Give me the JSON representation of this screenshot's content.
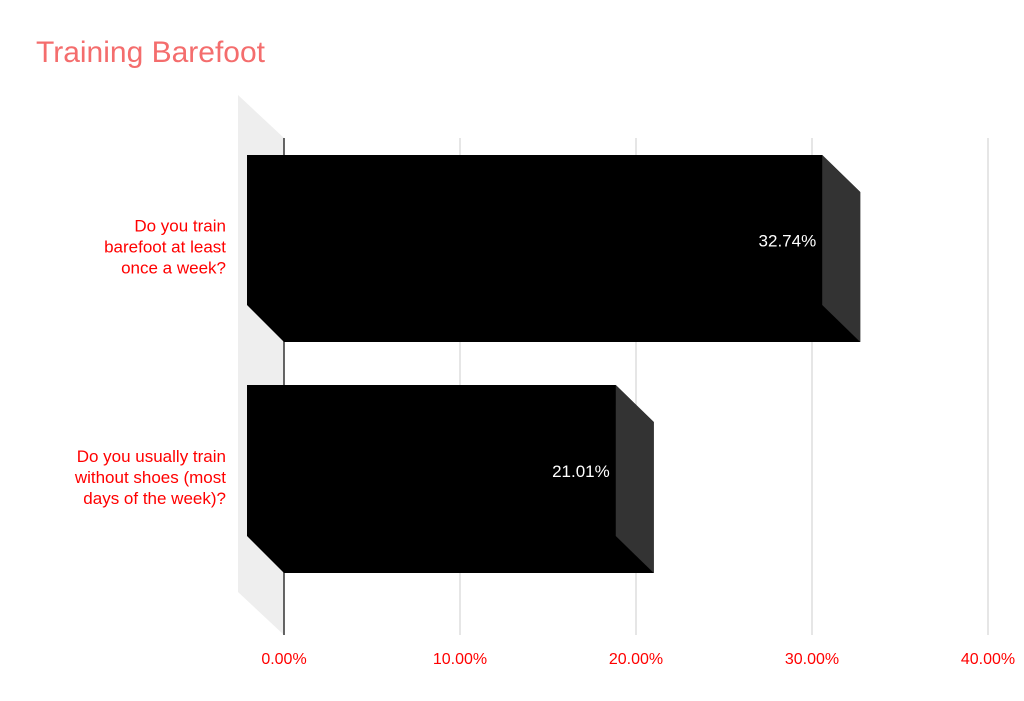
{
  "chart_data": {
    "type": "bar",
    "orientation": "horizontal",
    "style": "3d",
    "title": "Training Barefoot",
    "categories": [
      "Do you train barefoot at least once a week?",
      "Do you usually train without shoes (most days of the week)?"
    ],
    "category_lines": [
      [
        "Do you train",
        "barefoot at least",
        "once a week?"
      ],
      [
        "Do you usually train",
        "without shoes (most",
        "days of the week)?"
      ]
    ],
    "values": [
      32.74,
      21.01
    ],
    "data_labels": [
      "32.74%",
      "21.01%"
    ],
    "xlim": [
      0,
      40
    ],
    "xticks": [
      "0.00%",
      "10.00%",
      "20.00%",
      "30.00%",
      "40.00%"
    ],
    "grid": true,
    "colors": {
      "title": "#f46d6d",
      "labels": "#ff0000",
      "bar": "#000000",
      "bar_side": "#333333",
      "grid": "#cccccc",
      "wall": "#eeeeee",
      "data_label": "#ffffff"
    }
  }
}
